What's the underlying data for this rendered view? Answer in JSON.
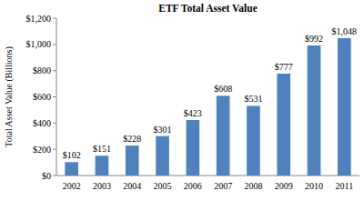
{
  "chart_data": {
    "type": "bar",
    "title": "ETF Total Asset Value",
    "y_label": "Total Asset Value (Billions)",
    "categories": [
      "2002",
      "2003",
      "2004",
      "2005",
      "2006",
      "2007",
      "2008",
      "2009",
      "2010",
      "2011"
    ],
    "values": [
      102,
      151,
      228,
      301,
      423,
      608,
      531,
      777,
      992,
      1048
    ],
    "value_labels": [
      "$102",
      "$151",
      "$228",
      "$301",
      "$423",
      "$608",
      "$531",
      "$777",
      "$992",
      "$1,048"
    ],
    "color": "#4f81bd",
    "ylim": [
      0,
      1200
    ],
    "yticks": [
      {
        "value": 0,
        "label": "$0"
      },
      {
        "value": 200,
        "label": "$200"
      },
      {
        "value": 400,
        "label": "$400"
      },
      {
        "value": 600,
        "label": "$600"
      },
      {
        "value": 800,
        "label": "$800"
      },
      {
        "value": 1000,
        "label": "$1,000"
      },
      {
        "value": 1200,
        "label": "$1,200"
      }
    ],
    "grid": false,
    "data_labels": true
  }
}
